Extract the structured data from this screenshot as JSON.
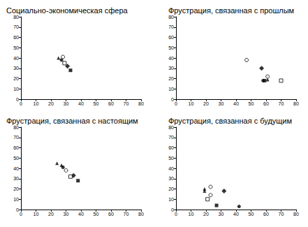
{
  "chart_data": [
    {
      "type": "scatter",
      "title": "Социально-экономическая сфера",
      "xlim": [
        0,
        80
      ],
      "xticks": [
        0,
        10,
        20,
        30,
        40,
        50,
        60,
        70,
        80
      ],
      "ylim": [
        0,
        80
      ],
      "yticks": [
        0,
        10,
        20,
        30,
        40,
        50,
        60,
        70,
        80
      ],
      "grid": false,
      "series": [
        {
          "marker": "triangle",
          "color": "#000000",
          "x": [
            25
          ],
          "values": [
            40
          ]
        },
        {
          "marker": "circle",
          "color": "#000000",
          "x": [
            27
          ],
          "values": [
            38
          ]
        },
        {
          "marker": "open-circle",
          "color": "#000000",
          "x": [
            28
          ],
          "values": [
            41
          ]
        },
        {
          "marker": "diamond",
          "color": "#000000",
          "x": [
            31
          ],
          "values": [
            32
          ]
        },
        {
          "marker": "open-square",
          "color": "#000000",
          "x": [
            29
          ],
          "values": [
            35
          ]
        },
        {
          "marker": "square",
          "color": "#000000",
          "x": [
            33
          ],
          "values": [
            28
          ]
        }
      ]
    },
    {
      "type": "scatter",
      "title": "Фрустрация, связанная с прошлым",
      "xlim": [
        0,
        80
      ],
      "xticks": [
        0,
        10,
        20,
        30,
        40,
        50,
        60,
        70,
        80
      ],
      "ylim": [
        0,
        80
      ],
      "yticks": [
        0,
        10,
        20,
        30,
        40,
        50,
        60,
        70,
        80
      ],
      "grid": false,
      "series": [
        {
          "marker": "triangle",
          "color": "#000000",
          "x": [
            61
          ],
          "values": [
            19
          ]
        },
        {
          "marker": "circle",
          "color": "#000000",
          "x": [
            58
          ],
          "values": [
            18
          ]
        },
        {
          "marker": "open-circle",
          "color": "#000000",
          "x": [
            47,
            61
          ],
          "values": [
            38,
            22
          ]
        },
        {
          "marker": "diamond",
          "color": "#000000",
          "x": [
            57
          ],
          "values": [
            30
          ]
        },
        {
          "marker": "open-square",
          "color": "#000000",
          "x": [
            70
          ],
          "values": [
            18
          ]
        },
        {
          "marker": "square",
          "color": "#000000",
          "x": [
            59
          ],
          "values": [
            18
          ]
        }
      ]
    },
    {
      "type": "scatter",
      "title": "Фрустрация, связанная с настоящим",
      "xlim": [
        0,
        80
      ],
      "xticks": [
        0,
        10,
        20,
        30,
        40,
        50,
        60,
        70,
        80
      ],
      "ylim": [
        0,
        80
      ],
      "yticks": [
        0,
        10,
        20,
        30,
        40,
        50,
        60,
        70,
        80
      ],
      "grid": false,
      "series": [
        {
          "marker": "triangle",
          "color": "#000000",
          "x": [
            24,
            27
          ],
          "values": [
            45,
            43
          ]
        },
        {
          "marker": "circle",
          "color": "#000000",
          "x": [
            28
          ],
          "values": [
            41
          ]
        },
        {
          "marker": "open-circle",
          "color": "#000000",
          "x": [
            30
          ],
          "values": [
            38
          ]
        },
        {
          "marker": "diamond",
          "color": "#000000",
          "x": [
            35
          ],
          "values": [
            33
          ]
        },
        {
          "marker": "open-square",
          "color": "#000000",
          "x": [
            33
          ],
          "values": [
            32
          ]
        },
        {
          "marker": "square",
          "color": "#000000",
          "x": [
            38
          ],
          "values": [
            28
          ]
        }
      ]
    },
    {
      "type": "scatter",
      "title": "Фрустрация, связанная с будущим",
      "xlim": [
        0,
        80
      ],
      "xticks": [
        0,
        10,
        20,
        30,
        40,
        50,
        60,
        70,
        80
      ],
      "ylim": [
        0,
        80
      ],
      "yticks": [
        0,
        10,
        20,
        30,
        40,
        50,
        60,
        70,
        80
      ],
      "grid": false,
      "series": [
        {
          "marker": "triangle",
          "color": "#000000",
          "x": [
            19,
            19
          ],
          "values": [
            20,
            18
          ]
        },
        {
          "marker": "circle",
          "color": "#000000",
          "x": [
            42
          ],
          "values": [
            3
          ]
        },
        {
          "marker": "open-circle",
          "color": "#000000",
          "x": [
            23,
            23
          ],
          "values": [
            22,
            14
          ]
        },
        {
          "marker": "diamond",
          "color": "#000000",
          "x": [
            32
          ],
          "values": [
            18
          ]
        },
        {
          "marker": "open-square",
          "color": "#000000",
          "x": [
            21
          ],
          "values": [
            10
          ]
        },
        {
          "marker": "square",
          "color": "#000000",
          "x": [
            27
          ],
          "values": [
            4
          ]
        }
      ]
    }
  ]
}
